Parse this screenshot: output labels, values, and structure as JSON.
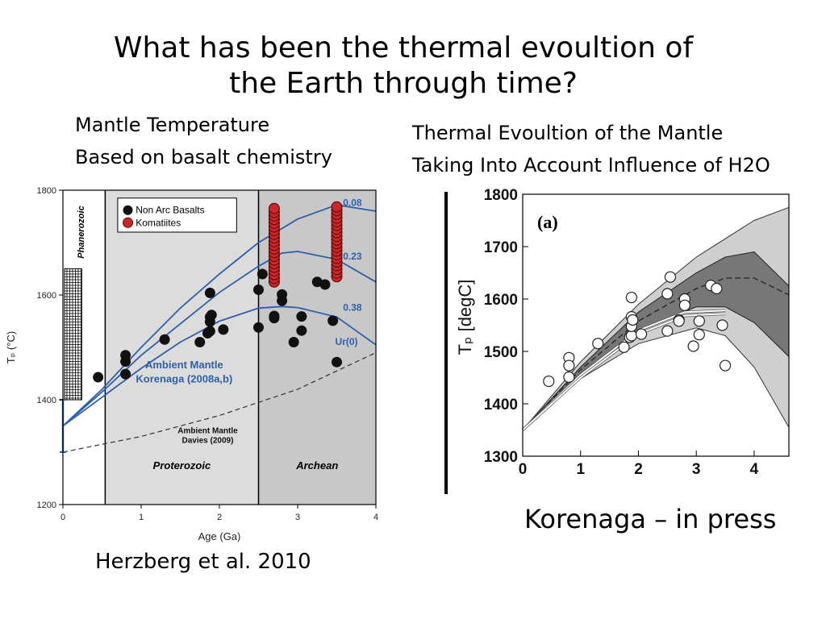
{
  "slide": {
    "title_line1": "What  has been the thermal evoultion of",
    "title_line2": "the Earth through time?",
    "left_caption_line1": "Mantle Temperature",
    "left_caption_line2": "Based on basalt chemistry",
    "right_caption_line1": "Thermal Evoultion of the Mantle",
    "right_caption_line2": "Taking Into Account Influence of H2O",
    "left_citation": "Herzberg et al. 2010",
    "right_citation": "Korenaga – in press"
  },
  "chart_data": [
    {
      "type": "scatter",
      "xlabel": "Age (Ga)",
      "ylabel": "Tₚ (°C)",
      "xlim": [
        0,
        4
      ],
      "ylim": [
        1200,
        1800
      ],
      "x_ticks": [
        "0",
        "1",
        "2",
        "3",
        "4"
      ],
      "y_ticks": [
        "1200",
        "1400",
        "1600",
        "1800"
      ],
      "legend": {
        "placement": "top-center",
        "entries": [
          "Non Arc Basalts",
          "Komatiites"
        ]
      },
      "colors": {
        "non_arc": "#111111",
        "komatiite": "#c8282a",
        "curve": "#2f5fa8",
        "phanero_band": "#ffffff",
        "shade": "#dcdcdc",
        "archean_shade": "#c8c8c8"
      },
      "eon_boundaries": [
        0.54,
        2.5
      ],
      "region_labels": {
        "phanerozoic": "Phanerozoic",
        "proterozoic": "Proterozoic",
        "archean": "Archean"
      },
      "annotations": {
        "korenaga_line1": "Ambient Mantle",
        "korenaga_line2": "Korenaga (2008a,b)",
        "davies_line1": "Ambient Mantle",
        "davies_line2": "Davies (2009)"
      },
      "series": [
        {
          "name": "Non Arc Basalts",
          "points": [
            [
              0.45,
              1443
            ],
            [
              0.8,
              1485
            ],
            [
              0.8,
              1473
            ],
            [
              0.8,
              1449
            ],
            [
              1.3,
              1515
            ],
            [
              1.75,
              1510
            ],
            [
              1.85,
              1527
            ],
            [
              1.88,
              1531
            ],
            [
              1.88,
              1549
            ],
            [
              1.88,
              1558
            ],
            [
              1.9,
              1562
            ],
            [
              1.88,
              1604
            ],
            [
              2.05,
              1534
            ],
            [
              2.5,
              1538
            ],
            [
              2.5,
              1610
            ],
            [
              2.55,
              1640
            ],
            [
              2.7,
              1560
            ],
            [
              2.7,
              1556
            ],
            [
              2.8,
              1601
            ],
            [
              2.8,
              1589
            ],
            [
              2.95,
              1510
            ],
            [
              3.05,
              1532
            ],
            [
              3.05,
              1559
            ],
            [
              3.25,
              1625
            ],
            [
              3.35,
              1620
            ],
            [
              3.45,
              1551
            ],
            [
              3.5,
              1472
            ]
          ]
        },
        {
          "name": "Komatiites",
          "ranges": [
            [
              2.7,
              1625,
              1770
            ],
            [
              3.5,
              1635,
              1772
            ]
          ]
        }
      ],
      "curves": [
        {
          "label": "0.08",
          "points": [
            [
              0,
              1350
            ],
            [
              0.5,
              1420
            ],
            [
              1,
              1500
            ],
            [
              1.5,
              1575
            ],
            [
              2,
              1640
            ],
            [
              2.5,
              1700
            ],
            [
              3,
              1745
            ],
            [
              3.5,
              1772
            ],
            [
              4,
              1760
            ]
          ]
        },
        {
          "label": "0.23",
          "points": [
            [
              0,
              1350
            ],
            [
              0.5,
              1415
            ],
            [
              1,
              1485
            ],
            [
              1.5,
              1545
            ],
            [
              2,
              1605
            ],
            [
              2.5,
              1655
            ],
            [
              2.8,
              1680
            ],
            [
              3,
              1683
            ],
            [
              3.5,
              1668
            ],
            [
              4,
              1625
            ]
          ]
        },
        {
          "label": "0.38",
          "points": [
            [
              0,
              1350
            ],
            [
              0.5,
              1405
            ],
            [
              1,
              1460
            ],
            [
              1.5,
              1510
            ],
            [
              2,
              1550
            ],
            [
              2.5,
              1575
            ],
            [
              2.8,
              1578
            ],
            [
              3,
              1576
            ],
            [
              3.5,
              1558
            ],
            [
              4,
              1505
            ]
          ]
        },
        {
          "label": "Ur(0)",
          "points": []
        }
      ],
      "davies_curve": [
        [
          0,
          1300
        ],
        [
          1,
          1330
        ],
        [
          2,
          1370
        ],
        [
          3,
          1420
        ],
        [
          4,
          1490
        ]
      ],
      "phanerozoic_bar": [
        1400,
        1650
      ]
    },
    {
      "type": "scatter",
      "panel_label": "(a)",
      "xlabel": "",
      "ylabel": "Tₚ [degC]",
      "xlim": [
        0,
        4.6
      ],
      "ylim": [
        1300,
        1800
      ],
      "x_ticks": [
        "0",
        "1",
        "2",
        "3",
        "4"
      ],
      "y_ticks": [
        "1300",
        "1400",
        "1500",
        "1600",
        "1700",
        "1800"
      ],
      "colors": {
        "light_band": "#cfcfcf",
        "dark_band": "#777777",
        "marker": "#ffffff"
      },
      "series": [
        {
          "name": "",
          "points": [
            [
              0.45,
              1443
            ],
            [
              0.8,
              1488
            ],
            [
              0.8,
              1473
            ],
            [
              0.8,
              1451
            ],
            [
              1.3,
              1515
            ],
            [
              1.75,
              1508
            ],
            [
              1.85,
              1527
            ],
            [
              1.88,
              1530
            ],
            [
              1.88,
              1548
            ],
            [
              1.88,
              1566
            ],
            [
              1.9,
              1560
            ],
            [
              1.88,
              1603
            ],
            [
              2.05,
              1533
            ],
            [
              2.5,
              1539
            ],
            [
              2.5,
              1610
            ],
            [
              2.55,
              1642
            ],
            [
              2.7,
              1560
            ],
            [
              2.7,
              1558
            ],
            [
              2.8,
              1600
            ],
            [
              2.8,
              1588
            ],
            [
              2.95,
              1510
            ],
            [
              3.05,
              1532
            ],
            [
              3.05,
              1558
            ],
            [
              3.25,
              1626
            ],
            [
              3.35,
              1620
            ],
            [
              3.45,
              1550
            ],
            [
              3.5,
              1473
            ]
          ]
        }
      ],
      "bands": {
        "light_upper": [
          [
            0,
            1350
          ],
          [
            1,
            1480
          ],
          [
            2,
            1590
          ],
          [
            3,
            1680
          ],
          [
            4,
            1750
          ],
          [
            4.6,
            1775
          ]
        ],
        "light_lower": [
          [
            0,
            1350
          ],
          [
            1,
            1448
          ],
          [
            2,
            1515
          ],
          [
            3,
            1545
          ],
          [
            3.5,
            1530
          ],
          [
            4,
            1470
          ],
          [
            4.6,
            1355
          ]
        ],
        "dark_upper": [
          [
            0,
            1350
          ],
          [
            1,
            1470
          ],
          [
            2,
            1575
          ],
          [
            3,
            1650
          ],
          [
            3.5,
            1680
          ],
          [
            4,
            1690
          ],
          [
            4.6,
            1625
          ]
        ],
        "dark_lower": [
          [
            0,
            1350
          ],
          [
            1,
            1458
          ],
          [
            2,
            1540
          ],
          [
            3,
            1585
          ],
          [
            3.5,
            1585
          ],
          [
            4,
            1555
          ],
          [
            4.6,
            1490
          ]
        ],
        "dashed_mid": [
          [
            0,
            1350
          ],
          [
            1,
            1465
          ],
          [
            2,
            1558
          ],
          [
            3,
            1620
          ],
          [
            3.5,
            1640
          ],
          [
            4,
            1640
          ],
          [
            4.6,
            1608
          ]
        ],
        "white_curves": [
          [
            [
              0,
              1350
            ],
            [
              1,
              1455
            ],
            [
              2,
              1540
            ],
            [
              2.8,
              1575
            ],
            [
              3.5,
              1578
            ]
          ],
          [
            [
              0,
              1350
            ],
            [
              1,
              1450
            ],
            [
              2,
              1533
            ],
            [
              2.8,
              1568
            ],
            [
              3.5,
              1572
            ]
          ]
        ]
      }
    }
  ]
}
